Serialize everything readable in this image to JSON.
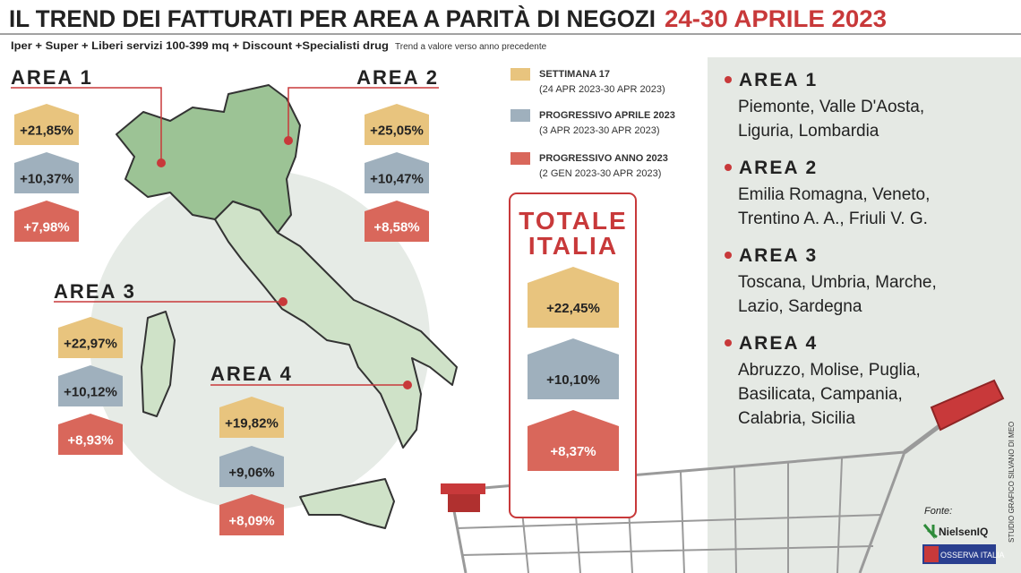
{
  "header": {
    "title": "IL TREND DEI FATTURATI PER AREA A PARITÀ DI NEGOZI",
    "title_dates": "24-30 APRILE 2023",
    "subtitle": "Iper + Super + Liberi servizi 100-399 mq + Discount +Specialisti drug",
    "note": "Trend a valore verso anno precedente"
  },
  "legend": [
    {
      "label": "SETTIMANA 17",
      "period": "(24 APR 2023-30 APR 2023)",
      "color": "#e8c47e"
    },
    {
      "label": "PROGRESSIVO APRILE 2023",
      "period": "(3 APR 2023-30 APR 2023)",
      "color": "#9fb0bd"
    },
    {
      "label": "PROGRESSIVO ANNO 2023",
      "period": "(2 GEN 2023-30 APR 2023)",
      "color": "#d9675b"
    }
  ],
  "areas": [
    {
      "name": "AREA 1",
      "values": [
        "+21,85%",
        "+10,37%",
        "+7,98%"
      ]
    },
    {
      "name": "AREA 2",
      "values": [
        "+25,05%",
        "+10,47%",
        "+8,58%"
      ]
    },
    {
      "name": "AREA 3",
      "values": [
        "+22,97%",
        "+10,12%",
        "+8,93%"
      ]
    },
    {
      "name": "AREA 4",
      "values": [
        "+19,82%",
        "+9,06%",
        "+8,09%"
      ]
    }
  ],
  "total": {
    "title_1": "TOTALE",
    "title_2": "ITALIA",
    "values": [
      "+22,45%",
      "+10,10%",
      "+8,37%"
    ]
  },
  "regions": [
    {
      "name": "AREA 1",
      "lines": [
        "Piemonte, Valle D'Aosta,",
        "Liguria, Lombardia"
      ]
    },
    {
      "name": "AREA 2",
      "lines": [
        "Emilia Romagna, Veneto,",
        "Trentino A. A., Friuli V. G."
      ]
    },
    {
      "name": "AREA 3",
      "lines": [
        "Toscana, Umbria, Marche,",
        "Lazio, Sardegna"
      ]
    },
    {
      "name": "AREA 4",
      "lines": [
        "Abruzzo, Molise, Puglia,",
        "Basilicata, Campania,",
        "Calabria, Sicilia"
      ]
    }
  ],
  "credits": {
    "source_label": "Fonte:",
    "source_1": "NielsenIQ",
    "source_2": "OSSERVA ITALIA",
    "author": "STUDIO GRAFICO SILVANO DI MEO"
  }
}
